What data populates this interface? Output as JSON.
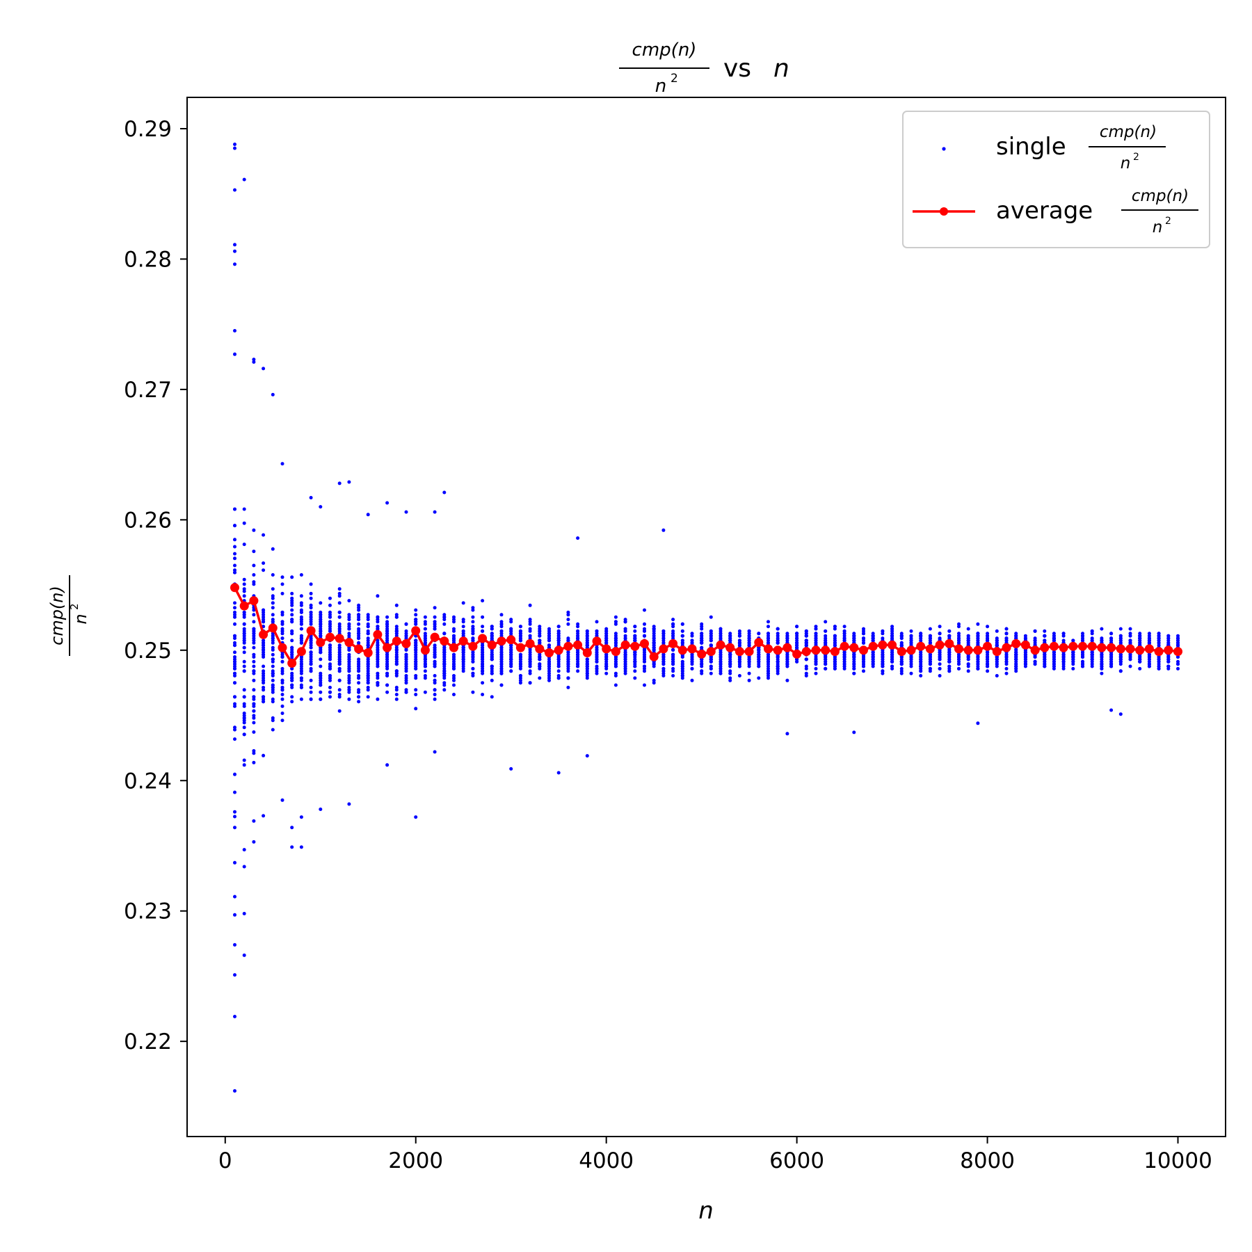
{
  "chart_data": {
    "type": "scatter",
    "title": {
      "numerator": "cmp(n)",
      "denominator_base": "n",
      "denominator_exp": "2",
      "suffix": "vs",
      "variable": "n"
    },
    "xlabel": "n",
    "ylabel": {
      "numerator": "cmp(n)",
      "denominator_base": "n",
      "denominator_exp": "2"
    },
    "xlim": [
      -400,
      10500
    ],
    "ylim": [
      0.2127,
      0.2924
    ],
    "xticks": [
      0,
      2000,
      4000,
      6000,
      8000,
      10000
    ],
    "yticks": [
      0.22,
      0.23,
      0.24,
      0.25,
      0.26,
      0.27,
      0.28,
      0.29
    ],
    "xtick_labels": [
      "0",
      "2000",
      "4000",
      "6000",
      "8000",
      "10000"
    ],
    "ytick_labels": [
      "0.22",
      "0.23",
      "0.24",
      "0.25",
      "0.26",
      "0.27",
      "0.28",
      "0.29"
    ],
    "grid": false,
    "legend": {
      "position": "top-right",
      "entries": [
        {
          "label": "single",
          "fraction_num": "cmp(n)",
          "fraction_den": "n",
          "fraction_exp": "2",
          "marker": "dot"
        },
        {
          "label": "average",
          "fraction_num": "cmp(n)",
          "fraction_den": "n",
          "fraction_exp": "2",
          "marker": "line-dot"
        }
      ]
    },
    "colors": {
      "single": "#0000ff",
      "average": "#ff0000"
    },
    "series": [
      {
        "name": "single",
        "points_per_n": 50,
        "n_values": "100, 200, ..., 10000",
        "extreme_points": [
          [
            100,
            0.2162
          ],
          [
            100,
            0.2219
          ],
          [
            100,
            0.2251
          ],
          [
            100,
            0.2274
          ],
          [
            100,
            0.2297
          ],
          [
            100,
            0.2311
          ],
          [
            100,
            0.2337
          ],
          [
            100,
            0.2364
          ],
          [
            100,
            0.2391
          ],
          [
            100,
            0.2796
          ],
          [
            100,
            0.2806
          ],
          [
            100,
            0.2811
          ],
          [
            100,
            0.2853
          ],
          [
            100,
            0.2885
          ],
          [
            100,
            0.2888
          ],
          [
            100,
            0.2745
          ],
          [
            100,
            0.2727
          ],
          [
            200,
            0.2266
          ],
          [
            200,
            0.2298
          ],
          [
            200,
            0.2334
          ],
          [
            200,
            0.2347
          ],
          [
            200,
            0.2861
          ],
          [
            300,
            0.2353
          ],
          [
            300,
            0.2369
          ],
          [
            300,
            0.2723
          ],
          [
            300,
            0.2721
          ],
          [
            400,
            0.2373
          ],
          [
            400,
            0.2716
          ],
          [
            500,
            0.2696
          ],
          [
            600,
            0.2643
          ],
          [
            600,
            0.2385
          ],
          [
            700,
            0.2349
          ],
          [
            700,
            0.2364
          ],
          [
            800,
            0.2349
          ],
          [
            800,
            0.2372
          ],
          [
            900,
            0.2617
          ],
          [
            1000,
            0.261
          ],
          [
            1000,
            0.2378
          ],
          [
            1200,
            0.2628
          ],
          [
            1300,
            0.2629
          ],
          [
            1300,
            0.2382
          ],
          [
            1500,
            0.2604
          ],
          [
            1700,
            0.2613
          ],
          [
            1700,
            0.2412
          ],
          [
            1900,
            0.2606
          ],
          [
            2000,
            0.2372
          ],
          [
            2200,
            0.2606
          ],
          [
            2200,
            0.2422
          ],
          [
            2300,
            0.2621
          ],
          [
            3000,
            0.2409
          ],
          [
            3500,
            0.2406
          ],
          [
            3700,
            0.2586
          ],
          [
            3800,
            0.2419
          ],
          [
            4600,
            0.2592
          ],
          [
            5900,
            0.2436
          ],
          [
            6600,
            0.2437
          ],
          [
            7900,
            0.2444
          ],
          [
            9400,
            0.2451
          ],
          [
            9300,
            0.2454
          ]
        ]
      },
      {
        "name": "average",
        "x": [
          100,
          200,
          300,
          400,
          500,
          600,
          700,
          800,
          900,
          1000,
          1100,
          1200,
          1300,
          1400,
          1500,
          1600,
          1700,
          1800,
          1900,
          2000,
          2100,
          2200,
          2300,
          2400,
          2500,
          2600,
          2700,
          2800,
          2900,
          3000,
          3100,
          3200,
          3300,
          3400,
          3500,
          3600,
          3700,
          3800,
          3900,
          4000,
          4100,
          4200,
          4300,
          4400,
          4500,
          4600,
          4700,
          4800,
          4900,
          5000,
          5100,
          5200,
          5300,
          5400,
          5500,
          5600,
          5700,
          5800,
          5900,
          6000,
          6100,
          6200,
          6300,
          6400,
          6500,
          6600,
          6700,
          6800,
          6900,
          7000,
          7100,
          7200,
          7300,
          7400,
          7500,
          7600,
          7700,
          7800,
          7900,
          8000,
          8100,
          8200,
          8300,
          8400,
          8500,
          8600,
          8700,
          8800,
          8900,
          9000,
          9100,
          9200,
          9300,
          9400,
          9500,
          9600,
          9700,
          9800,
          9900,
          10000
        ],
        "values": [
          0.2548,
          0.2534,
          0.2538,
          0.2512,
          0.2517,
          0.2502,
          0.249,
          0.2499,
          0.2515,
          0.2506,
          0.251,
          0.2509,
          0.2506,
          0.2501,
          0.2498,
          0.2512,
          0.2502,
          0.2507,
          0.2505,
          0.2515,
          0.25,
          0.251,
          0.2507,
          0.2502,
          0.2507,
          0.2503,
          0.2509,
          0.2504,
          0.2507,
          0.2508,
          0.2502,
          0.2505,
          0.2501,
          0.2498,
          0.25,
          0.2503,
          0.2504,
          0.2498,
          0.2507,
          0.2501,
          0.2499,
          0.2504,
          0.2503,
          0.2505,
          0.2495,
          0.2501,
          0.2505,
          0.25,
          0.2501,
          0.2497,
          0.2499,
          0.2504,
          0.2502,
          0.2499,
          0.2499,
          0.2506,
          0.2501,
          0.25,
          0.2502,
          0.2497,
          0.2499,
          0.25,
          0.25,
          0.2499,
          0.2503,
          0.2502,
          0.25,
          0.2503,
          0.2504,
          0.2504,
          0.2499,
          0.25,
          0.2503,
          0.2501,
          0.2504,
          0.2505,
          0.2501,
          0.25,
          0.25,
          0.2503,
          0.2499,
          0.2502,
          0.2505,
          0.2504,
          0.25,
          0.2502,
          0.2503,
          0.2502,
          0.2503,
          0.2503,
          0.2503,
          0.2502,
          0.2502,
          0.2501,
          0.2501,
          0.25,
          0.2501,
          0.2499,
          0.25,
          0.2499
        ]
      }
    ]
  }
}
